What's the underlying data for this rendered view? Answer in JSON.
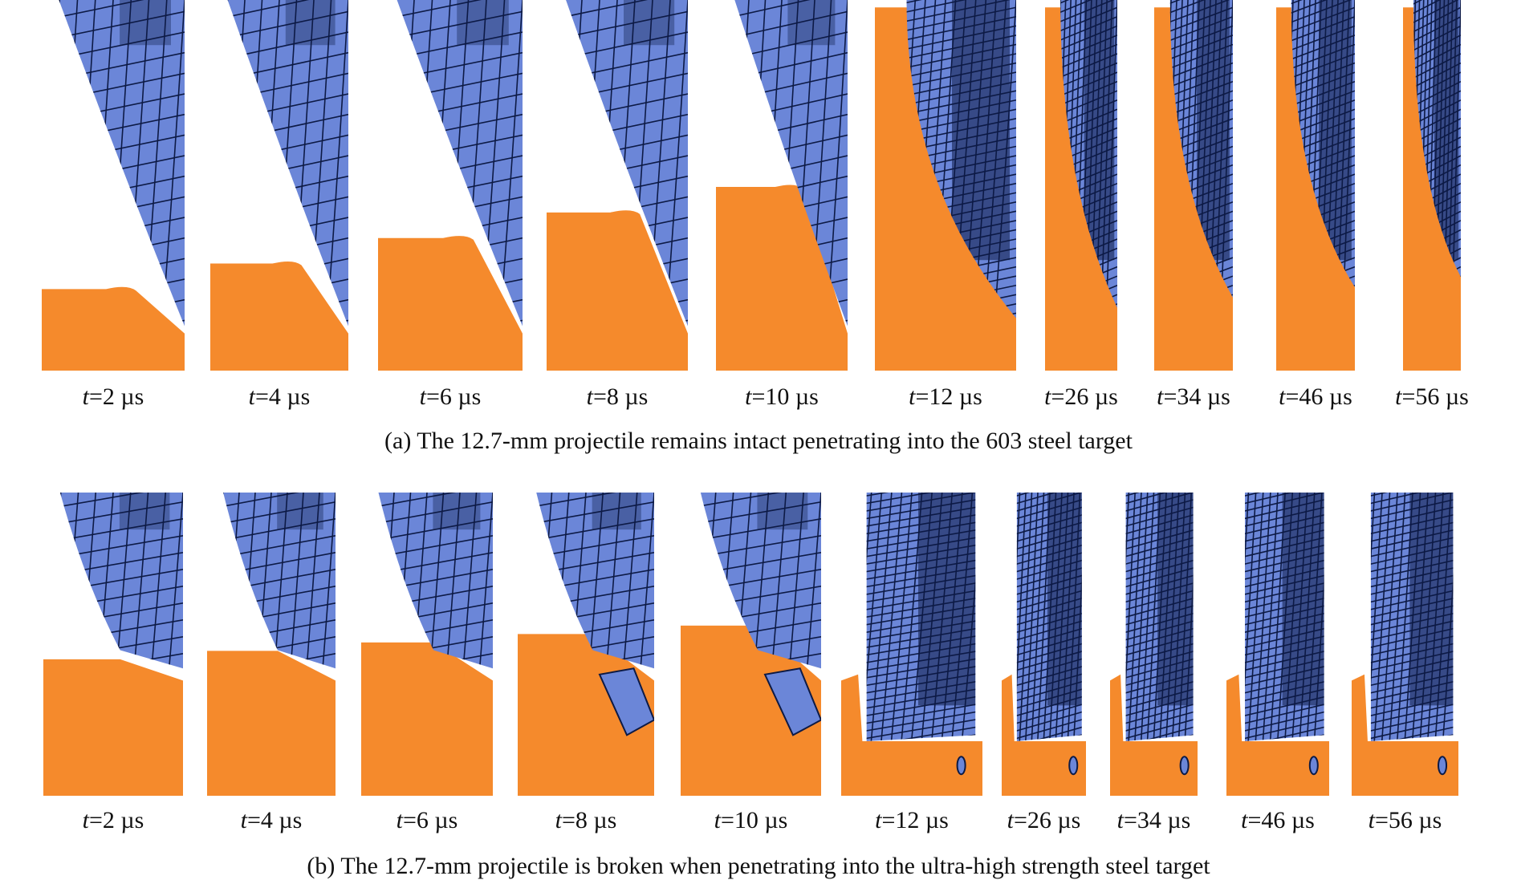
{
  "figure": {
    "rows": [
      {
        "id": "a",
        "caption": "(a) The 12.7-mm projectile remains intact penetrating into the 603 steel target",
        "fragmented": false,
        "frames": [
          {
            "t_var": "t",
            "rest": "=2 µs"
          },
          {
            "t_var": "t",
            "rest": "=4 µs"
          },
          {
            "t_var": "t",
            "rest": "=6 µs"
          },
          {
            "t_var": "t",
            "rest": "=8 µs"
          },
          {
            "t_var": "t",
            "rest": "=10 µs"
          },
          {
            "t_var": "t",
            "rest": "=12 µs"
          },
          {
            "t_var": "t",
            "rest": "=26 µs"
          },
          {
            "t_var": "t",
            "rest": "=34 µs"
          },
          {
            "t_var": "t",
            "rest": "=46 µs"
          },
          {
            "t_var": "t",
            "rest": "=56 µs"
          }
        ]
      },
      {
        "id": "b",
        "caption": "(b) The 12.7-mm projectile is broken when penetrating into the ultra-high strength steel target",
        "fragmented": true,
        "frames": [
          {
            "t_var": "t",
            "rest": "=2 µs"
          },
          {
            "t_var": "t",
            "rest": "=4 µs"
          },
          {
            "t_var": "t",
            "rest": "=6 µs"
          },
          {
            "t_var": "t",
            "rest": "=8 µs"
          },
          {
            "t_var": "t",
            "rest": "=10 µs"
          },
          {
            "t_var": "t",
            "rest": "=12 µs"
          },
          {
            "t_var": "t",
            "rest": "=26 µs"
          },
          {
            "t_var": "t",
            "rest": "=34 µs"
          },
          {
            "t_var": "t",
            "rest": "=46 µs"
          },
          {
            "t_var": "t",
            "rest": "=56 µs"
          }
        ]
      }
    ],
    "colors": {
      "projectile": "#6b86d8",
      "mesh": "#0d1a45",
      "target": "#f58a2c",
      "background": "#ffffff"
    }
  }
}
